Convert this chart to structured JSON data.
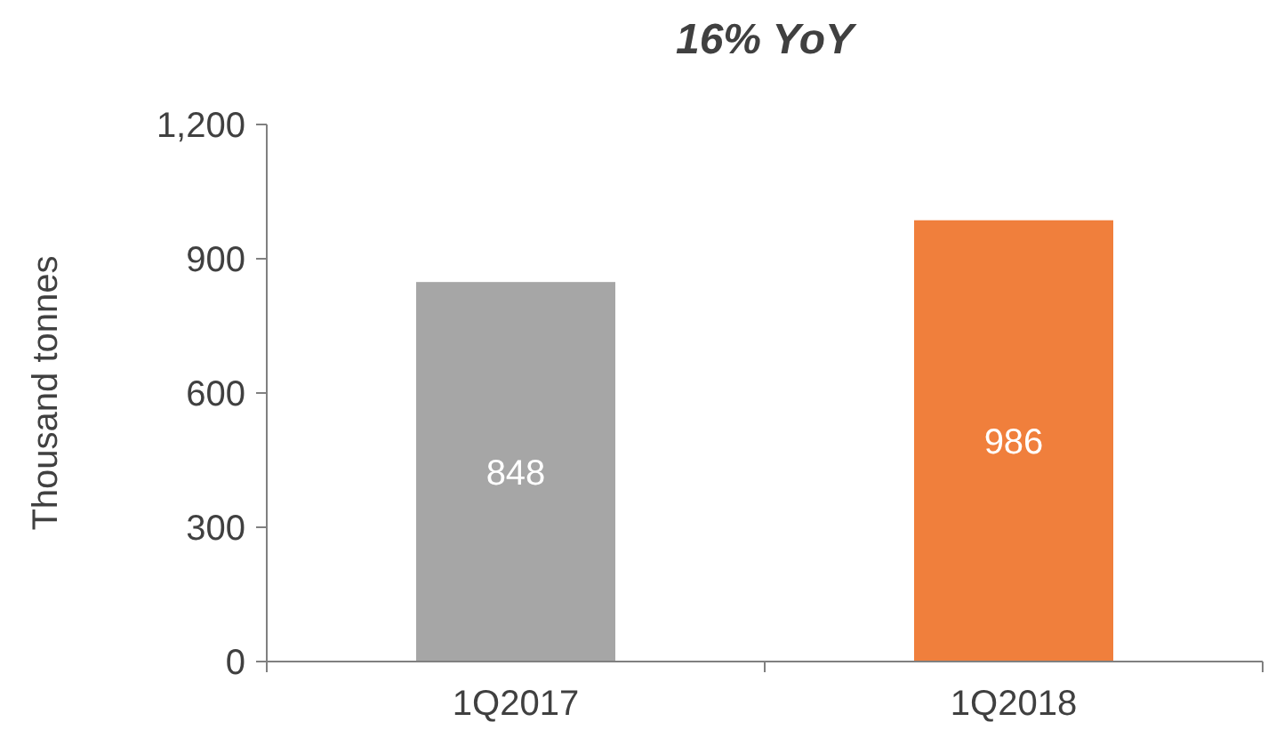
{
  "chart_data": {
    "type": "bar",
    "title": "16% YoY",
    "ylabel": "Thousand tonnes",
    "categories": [
      "1Q2017",
      "1Q2018"
    ],
    "values": [
      848,
      986
    ],
    "colors": [
      "#a6a6a6",
      "#f07f3c"
    ],
    "ylim": [
      0,
      1200
    ],
    "yticks": [
      0,
      300,
      600,
      900,
      {
        "value": 1200,
        "label": "1,200"
      }
    ],
    "data_labels": true,
    "grid": false
  }
}
